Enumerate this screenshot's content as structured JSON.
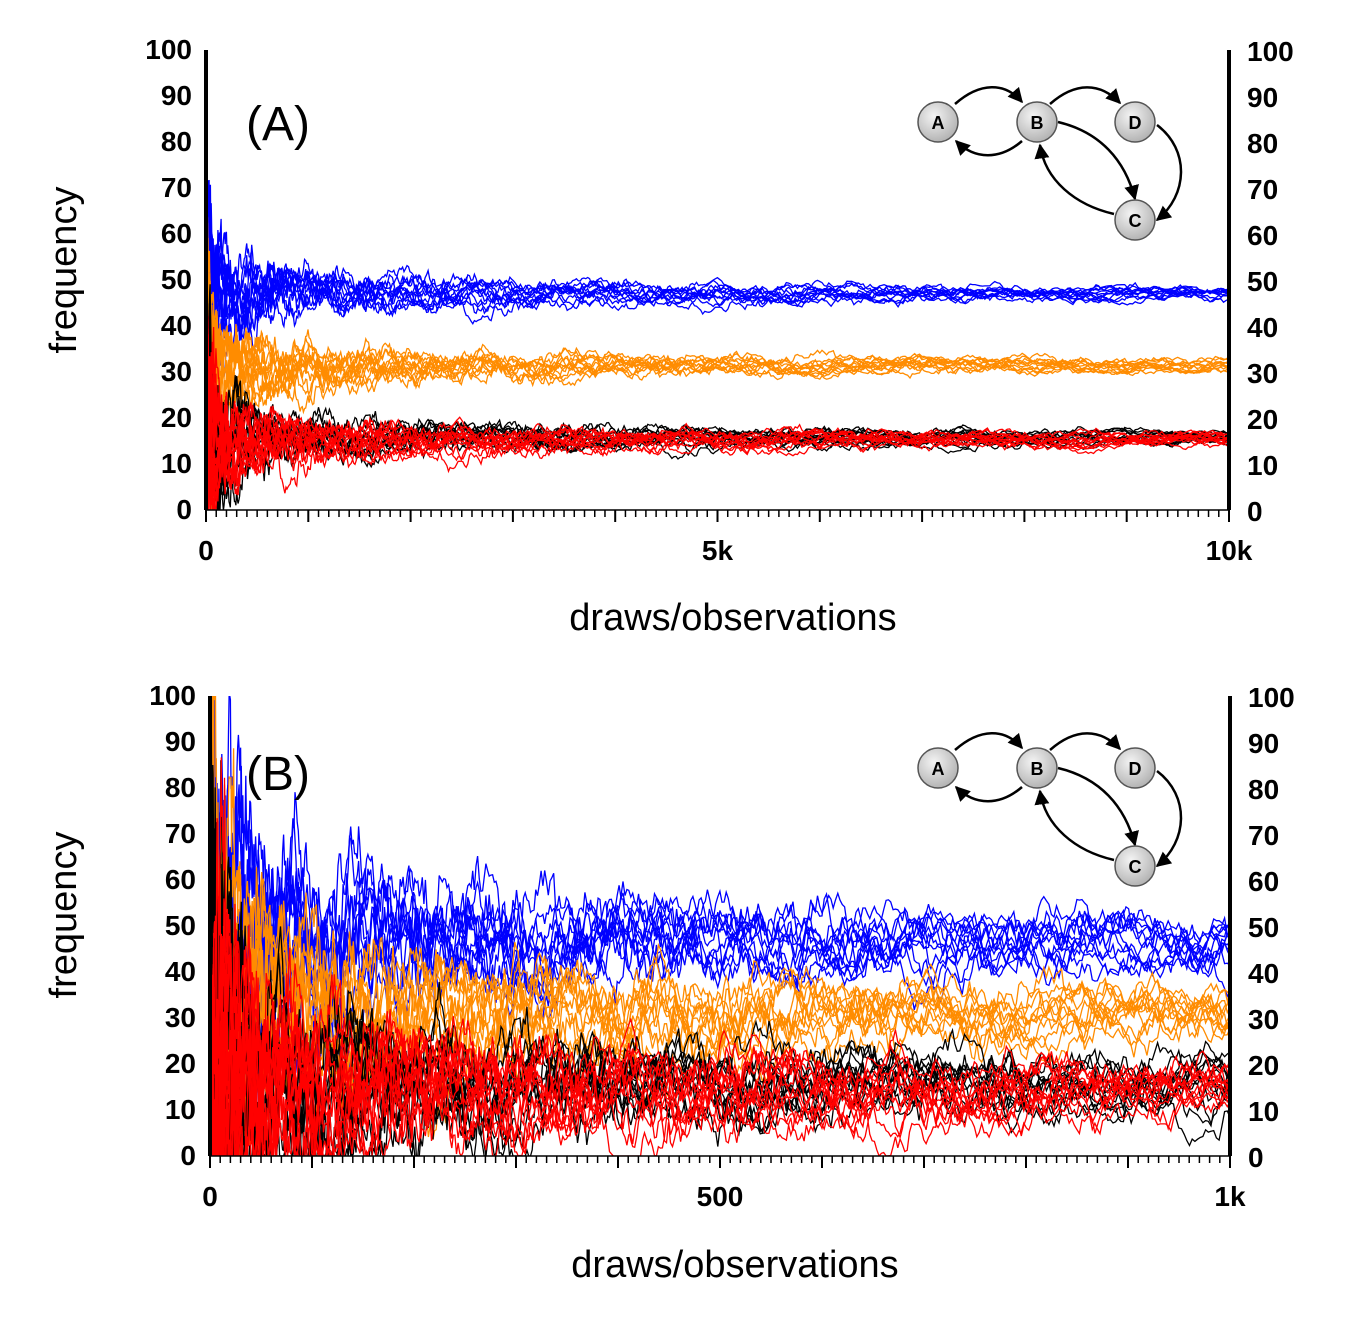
{
  "colors": {
    "blue": "#0000ff",
    "orange": "#ff8c00",
    "red": "#ff0000",
    "black": "#000000",
    "node_fill": "#d4d4d4"
  },
  "chart_data": [
    {
      "type": "line",
      "panel_label": "(A)",
      "xlabel": "draws/observations",
      "ylabel": "frequency",
      "xlim": [
        0,
        10000
      ],
      "ylim": [
        0,
        100
      ],
      "x_ticks": [
        "0",
        "5k",
        "10k"
      ],
      "y_ticks": [
        "0",
        "10",
        "20",
        "30",
        "40",
        "50",
        "60",
        "70",
        "80",
        "90",
        "100"
      ],
      "grid": false,
      "runs_per_series": 12,
      "series": [
        {
          "color": "blue",
          "converges_to": 47
        },
        {
          "color": "orange",
          "converges_to": 31.5
        },
        {
          "color": "black",
          "converges_to": 16
        },
        {
          "color": "red",
          "converges_to": 15.5
        }
      ]
    },
    {
      "type": "line",
      "panel_label": "(B)",
      "xlabel": "draws/observations",
      "ylabel": "frequency",
      "xlim": [
        0,
        1000
      ],
      "ylim": [
        0,
        100
      ],
      "x_ticks": [
        "0",
        "500",
        "1k"
      ],
      "y_ticks": [
        "0",
        "10",
        "20",
        "30",
        "40",
        "50",
        "60",
        "70",
        "80",
        "90",
        "100"
      ],
      "grid": false,
      "runs_per_series": 12,
      "series": [
        {
          "color": "blue",
          "converges_to": 47
        },
        {
          "color": "orange",
          "converges_to": 31.5
        },
        {
          "color": "black",
          "converges_to": 16
        },
        {
          "color": "red",
          "converges_to": 15
        }
      ]
    }
  ],
  "network": {
    "nodes": [
      "A",
      "B",
      "C",
      "D"
    ],
    "edges": [
      [
        "A",
        "B"
      ],
      [
        "B",
        "A"
      ],
      [
        "B",
        "D"
      ],
      [
        "B",
        "C"
      ],
      [
        "C",
        "B"
      ],
      [
        "D",
        "C"
      ]
    ]
  }
}
